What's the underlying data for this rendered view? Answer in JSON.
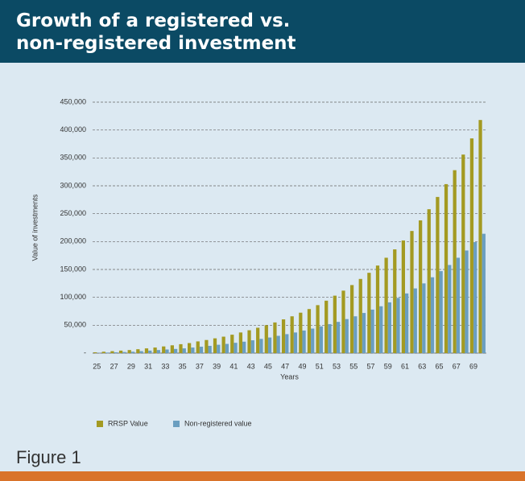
{
  "chart_data": {
    "type": "bar",
    "title": "Growth of a registered vs. non-registered investment",
    "caption": "Figure 1",
    "x_label": "Years",
    "y_label": "Value of investments",
    "categories": [
      "25",
      null,
      "27",
      null,
      "29",
      null,
      "31",
      null,
      "33",
      null,
      "35",
      null,
      "37",
      null,
      "39",
      null,
      "41",
      null,
      "43",
      null,
      "45",
      null,
      "47",
      null,
      "49",
      null,
      "51",
      null,
      "53",
      null,
      "55",
      null,
      "57",
      null,
      "59",
      null,
      "61",
      null,
      "63",
      null,
      "65",
      null,
      "67",
      null,
      "69",
      null
    ],
    "series": [
      {
        "name": "RRSP Value",
        "color": "#a39a22",
        "values": [
          1500,
          2500,
          3500,
          4500,
          5500,
          7000,
          8500,
          10000,
          12000,
          14000,
          16000,
          18000,
          21000,
          23500,
          26500,
          29500,
          33000,
          37000,
          41000,
          45500,
          50000,
          55000,
          60500,
          66000,
          72500,
          79000,
          86000,
          94000,
          103000,
          112000,
          122000,
          133000,
          144000,
          157000,
          171000,
          186000,
          202000,
          219000,
          238000,
          258000,
          280000,
          303000,
          328000,
          356000,
          385000,
          418000
        ]
      },
      {
        "name": "Non-registered value",
        "color": "#6a9ec0",
        "values": [
          500,
          1000,
          1500,
          2000,
          2500,
          3500,
          4500,
          5500,
          6500,
          7500,
          8500,
          10000,
          11500,
          13000,
          15000,
          16500,
          18500,
          20500,
          23000,
          25500,
          28000,
          31000,
          34000,
          37000,
          40500,
          44000,
          48000,
          52000,
          56000,
          61000,
          66000,
          72000,
          78000,
          84000,
          91000,
          99000,
          107000,
          116000,
          125000,
          136000,
          147000,
          158000,
          171000,
          184000,
          199000,
          214000
        ]
      }
    ],
    "ylim": [
      0,
      450000
    ],
    "yticks": [
      {
        "value": 0,
        "label": "-"
      },
      {
        "value": 50000,
        "label": "50,000"
      },
      {
        "value": 100000,
        "label": "100,000"
      },
      {
        "value": 150000,
        "label": "150,000"
      },
      {
        "value": 200000,
        "label": "200,000"
      },
      {
        "value": 250000,
        "label": "250,000"
      },
      {
        "value": 300000,
        "label": "300,000"
      },
      {
        "value": 350000,
        "label": "350,000"
      },
      {
        "value": 400000,
        "label": "400,000"
      },
      {
        "value": 450000,
        "label": "450,000"
      }
    ],
    "grid": true
  }
}
